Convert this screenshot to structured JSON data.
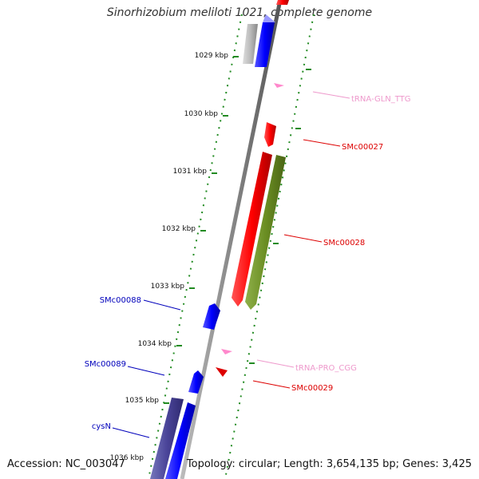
{
  "title": "Sinorhizobium meliloti 1021, complete genome",
  "footer": {
    "accession": "Accession: NC_003047",
    "topology": "Topology: circular; Length: 3,654,135 bp; Genes: 3,425"
  },
  "ticks": [
    {
      "label": "1029 kbp"
    },
    {
      "label": "1030 kbp"
    },
    {
      "label": "1031 kbp"
    },
    {
      "label": "1032 kbp"
    },
    {
      "label": "1033 kbp"
    },
    {
      "label": "1034 kbp"
    },
    {
      "label": "1035 kbp"
    },
    {
      "label": "1036 kbp"
    }
  ],
  "features": [
    {
      "name": "tRNA-GLN_TTG",
      "strand": "forward",
      "color": "#ee99cc"
    },
    {
      "name": "SMc00027",
      "strand": "forward",
      "color": "#dd0000"
    },
    {
      "name": "SMc00028",
      "strand": "forward",
      "color": "#dd0000"
    },
    {
      "name": "tRNA-PRO_CGG",
      "strand": "forward",
      "color": "#ee99cc"
    },
    {
      "name": "SMc00029",
      "strand": "forward",
      "color": "#dd0000"
    },
    {
      "name": "SMc00088",
      "strand": "reverse",
      "color": "#0000bb"
    },
    {
      "name": "SMc00089",
      "strand": "reverse",
      "color": "#0000bb"
    },
    {
      "name": "cysN",
      "strand": "reverse",
      "color": "#0000bb"
    }
  ],
  "colors": {
    "forward_gene": "#ff0000",
    "reverse_gene": "#0000ff",
    "trna": "#ff88cc",
    "operon_green": "#6b8e23",
    "operon_purple": "#4a4499",
    "backbone": "#888888",
    "gc_dots": "#228b22"
  }
}
